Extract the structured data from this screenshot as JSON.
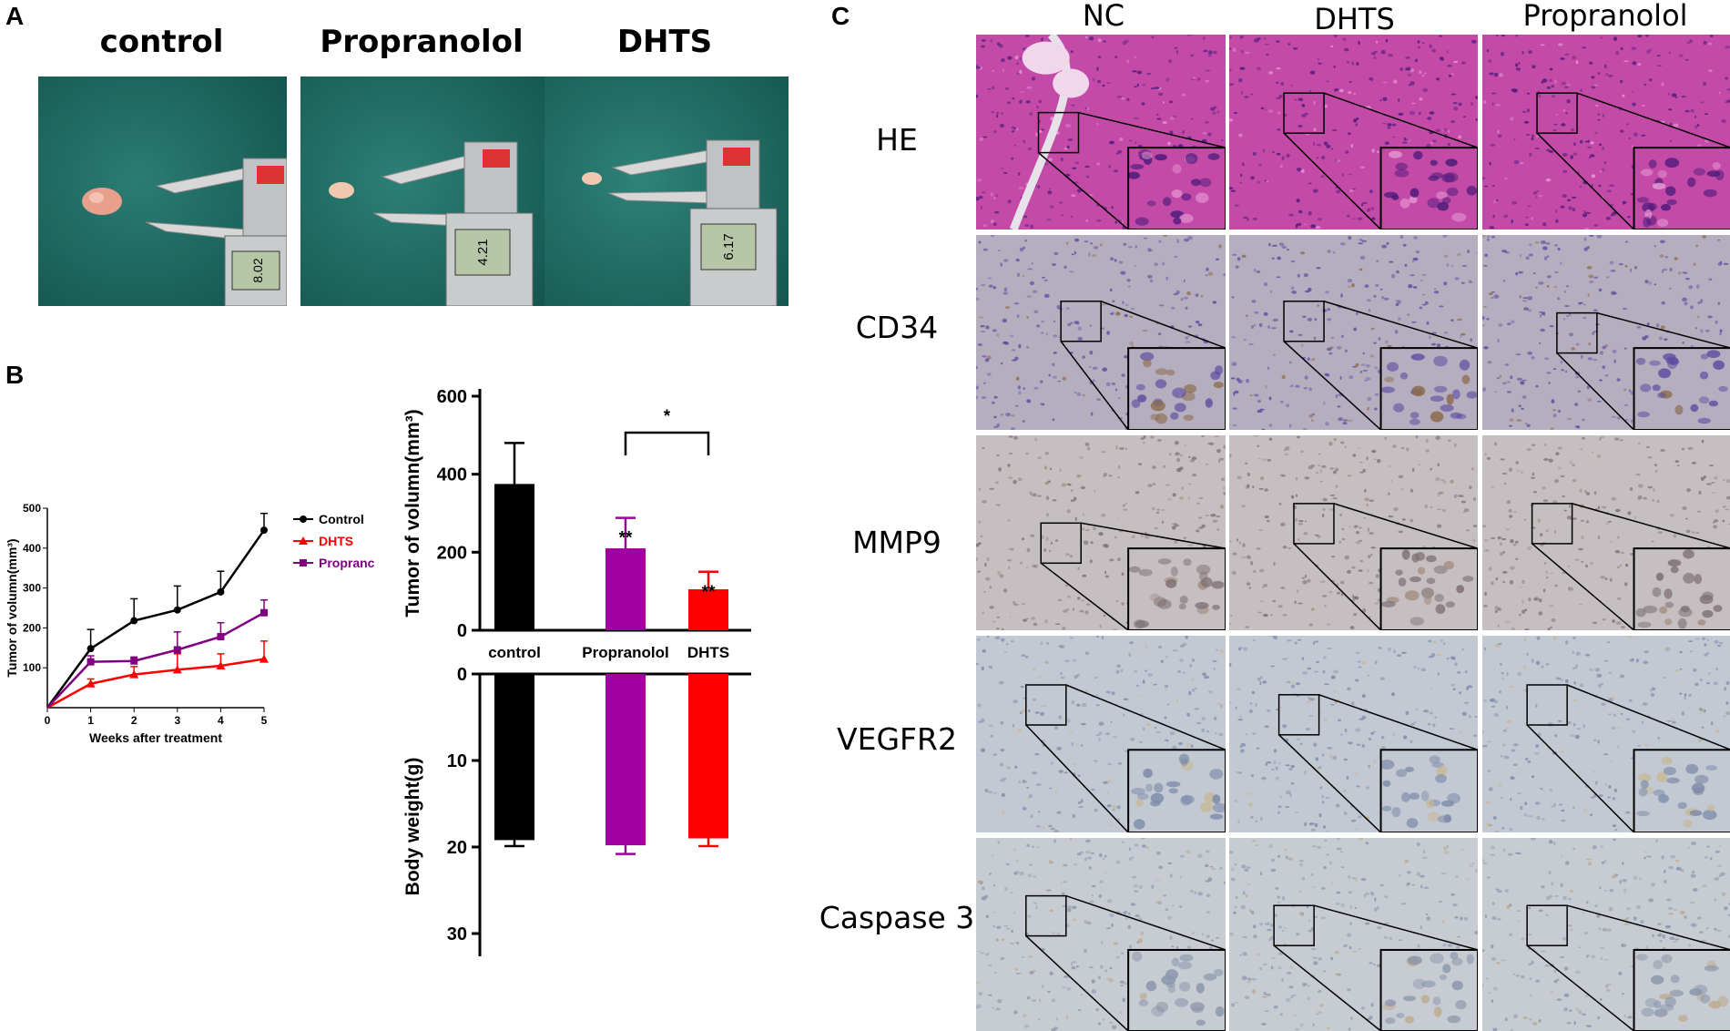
{
  "panels": {
    "a": {
      "letter": "A",
      "titles": [
        "control",
        "Propranolol",
        "DHTS"
      ],
      "readings": [
        "8.02",
        "4.21",
        "6.17"
      ]
    },
    "b": {
      "letter": "B"
    },
    "c": {
      "letter": "C",
      "columns": [
        "NC",
        "DHTS",
        "Propranolol"
      ],
      "rows": [
        "HE",
        "CD34",
        "MMP9",
        "VEGFR2",
        "Caspase 3"
      ]
    }
  },
  "chart_data": [
    {
      "type": "line",
      "title": "",
      "xlabel": "Weeks after treatment",
      "ylabel": "Tumor of volumn(mm³)",
      "xlim": [
        0,
        5
      ],
      "ylim": [
        0,
        500
      ],
      "xticks": [
        0,
        1,
        2,
        3,
        4,
        5
      ],
      "yticks": [
        100,
        200,
        300,
        400,
        500
      ],
      "legend_position": "right",
      "x": [
        0,
        1,
        2,
        3,
        4,
        5
      ],
      "series": [
        {
          "name": "Control",
          "color": "#000000",
          "marker": "circle",
          "values": [
            0,
            148,
            218,
            245,
            290,
            445
          ],
          "errors": [
            0,
            48,
            55,
            60,
            52,
            42
          ]
        },
        {
          "name": "DHTS",
          "color": "#ff0000",
          "marker": "triangle",
          "values": [
            0,
            60,
            83,
            95,
            105,
            122
          ],
          "errors": [
            0,
            12,
            20,
            40,
            30,
            45
          ]
        },
        {
          "name": "Propranc",
          "color": "#800080",
          "marker": "square",
          "values": [
            0,
            115,
            117,
            145,
            178,
            238
          ],
          "errors": [
            0,
            15,
            10,
            45,
            35,
            32
          ]
        }
      ]
    },
    {
      "type": "bar",
      "title": "",
      "categories": [
        "control",
        "Propranolol",
        "DHTS"
      ],
      "colors": [
        "#000000",
        "#a000a0",
        "#ff0000"
      ],
      "top": {
        "ylabel": "Tumor of volumn(mm³)",
        "ylim": [
          0,
          600
        ],
        "yticks": [
          0,
          200,
          400,
          600
        ],
        "values": [
          375,
          210,
          105
        ],
        "errors": [
          105,
          78,
          45
        ],
        "significance": [
          "",
          "**",
          "**"
        ],
        "bracket": {
          "between": [
            "Propranolol",
            "DHTS"
          ],
          "label": "*"
        }
      },
      "bottom": {
        "ylabel": "Body weight(g)",
        "ylim": [
          0,
          30
        ],
        "yticks": [
          0,
          10,
          20,
          30
        ],
        "values": [
          19.2,
          19.8,
          19.0
        ],
        "errors": [
          0.7,
          1.0,
          0.9
        ]
      }
    }
  ]
}
